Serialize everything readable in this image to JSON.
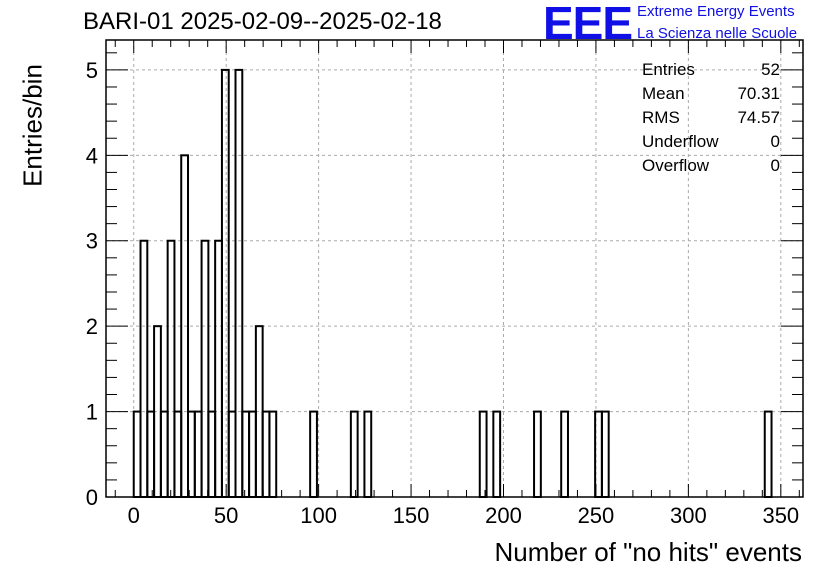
{
  "chart_data": {
    "type": "bar",
    "title": "BARI-01 2025-02-09--2025-02-18",
    "xlabel": "Number of \"no hits\" events",
    "ylabel": "Entries/bin",
    "xlim": [
      -15,
      362
    ],
    "ylim": [
      0,
      5.35
    ],
    "bin_width": 3.67,
    "x_ticks": [
      "0",
      "50",
      "100",
      "150",
      "200",
      "250",
      "300",
      "350"
    ],
    "y_ticks": [
      "0",
      "1",
      "2",
      "3",
      "4",
      "5"
    ],
    "grid": true,
    "bins": [
      {
        "x": 0,
        "count": 1
      },
      {
        "x": 3.67,
        "count": 3
      },
      {
        "x": 7.34,
        "count": 1
      },
      {
        "x": 11.01,
        "count": 2
      },
      {
        "x": 14.68,
        "count": 1
      },
      {
        "x": 18.35,
        "count": 3
      },
      {
        "x": 22.02,
        "count": 1
      },
      {
        "x": 25.69,
        "count": 4
      },
      {
        "x": 29.36,
        "count": 1
      },
      {
        "x": 33.03,
        "count": 1
      },
      {
        "x": 36.7,
        "count": 3
      },
      {
        "x": 40.37,
        "count": 1
      },
      {
        "x": 44.04,
        "count": 3
      },
      {
        "x": 47.71,
        "count": 5
      },
      {
        "x": 51.38,
        "count": 1
      },
      {
        "x": 55.05,
        "count": 5
      },
      {
        "x": 58.72,
        "count": 1
      },
      {
        "x": 62.39,
        "count": 1
      },
      {
        "x": 66.06,
        "count": 2
      },
      {
        "x": 69.73,
        "count": 1
      },
      {
        "x": 73.4,
        "count": 1
      },
      {
        "x": 95.42,
        "count": 1
      },
      {
        "x": 117.44,
        "count": 1
      },
      {
        "x": 124.78,
        "count": 1
      },
      {
        "x": 187.17,
        "count": 1
      },
      {
        "x": 194.51,
        "count": 1
      },
      {
        "x": 216.53,
        "count": 1
      },
      {
        "x": 231.21,
        "count": 1
      },
      {
        "x": 249.56,
        "count": 1
      },
      {
        "x": 253.23,
        "count": 1
      },
      {
        "x": 341.31,
        "count": 1
      }
    ],
    "stats": {
      "entries_label": "Entries",
      "entries": "52",
      "mean_label": "Mean",
      "mean": "70.31",
      "rms_label": "RMS",
      "rms": "74.57",
      "underflow_label": "Underflow",
      "underflow": "0",
      "overflow_label": "Overflow",
      "overflow": "0"
    }
  },
  "logo": {
    "mark": "EEE",
    "line1": "Extreme Energy Events",
    "line2": "La Scienza nelle Scuole",
    "color": "#1010e6"
  }
}
